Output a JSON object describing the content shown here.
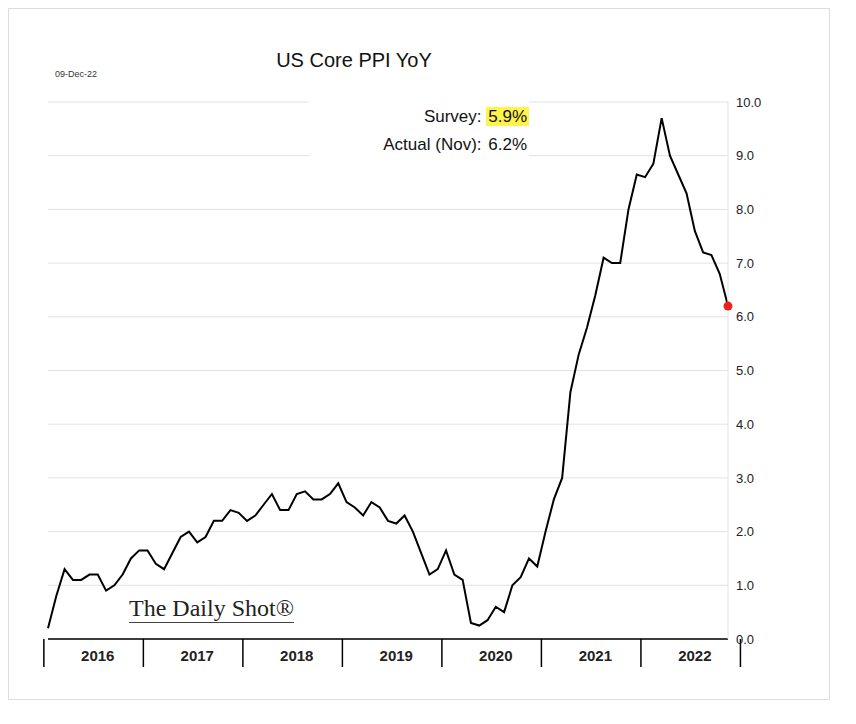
{
  "chart_data": {
    "type": "line",
    "title": "US Core PPI YoY",
    "date_label": "09-Dec-22",
    "source": "The Daily Shot®",
    "annotations": [
      {
        "text": "Survey:",
        "value": "5.9%"
      },
      {
        "text": "Actual (Nov):",
        "value": "6.2%"
      }
    ],
    "categories": [
      null,
      null,
      null,
      null,
      null,
      null,
      "2016",
      null,
      null,
      null,
      null,
      null,
      null,
      null,
      null,
      null,
      null,
      null,
      "2017",
      null,
      null,
      null,
      null,
      null,
      null,
      null,
      null,
      null,
      null,
      null,
      "2018",
      null,
      null,
      null,
      null,
      null,
      null,
      null,
      null,
      null,
      null,
      null,
      "2019",
      null,
      null,
      null,
      null,
      null,
      null,
      null,
      null,
      null,
      null,
      null,
      "2020",
      null,
      null,
      null,
      null,
      null,
      null,
      null,
      null,
      null,
      null,
      null,
      "2021",
      null,
      null,
      null,
      null,
      null,
      null,
      null,
      null,
      null,
      null,
      null,
      "2022",
      null,
      null,
      null,
      null
    ],
    "series": [
      {
        "name": "US Core PPI YoY",
        "color": "#000000",
        "marker": "last",
        "values": [
          0.2,
          0.8,
          1.3,
          1.1,
          1.1,
          1.2,
          1.2,
          0.9,
          1.0,
          1.2,
          1.5,
          1.65,
          1.65,
          1.4,
          1.3,
          1.6,
          1.9,
          2.0,
          1.8,
          1.9,
          2.2,
          2.2,
          2.4,
          2.35,
          2.2,
          2.3,
          2.5,
          2.7,
          2.4,
          2.4,
          2.7,
          2.75,
          2.6,
          2.6,
          2.7,
          2.9,
          2.55,
          2.45,
          2.3,
          2.55,
          2.45,
          2.2,
          2.15,
          2.3,
          2.0,
          1.6,
          1.2,
          1.3,
          1.65,
          1.2,
          1.1,
          0.3,
          0.25,
          0.35,
          0.6,
          0.5,
          1.0,
          1.15,
          1.5,
          1.35,
          2.0,
          2.6,
          3.0,
          4.6,
          5.3,
          5.8,
          6.4,
          7.1,
          7.0,
          7.0,
          8.0,
          8.65,
          8.6,
          8.85,
          9.7,
          9.0,
          8.65,
          8.3,
          7.6,
          7.2,
          7.15,
          6.8,
          6.2
        ]
      }
    ],
    "ylim": [
      0,
      10
    ],
    "yticks": [
      {
        "value": 0,
        "label": "0.0"
      },
      {
        "value": 1,
        "label": "1.0"
      },
      {
        "value": 2,
        "label": "2.0"
      },
      {
        "value": 3,
        "label": "3.0"
      },
      {
        "value": 4,
        "label": "4.0"
      },
      {
        "value": 5,
        "label": "5.0"
      },
      {
        "value": 6,
        "label": "6.0"
      },
      {
        "value": 7,
        "label": "7.0"
      },
      {
        "value": 8,
        "label": "8.0"
      },
      {
        "value": 9,
        "label": "9.0"
      },
      {
        "value": 10,
        "label": "10.0"
      }
    ],
    "grid": true
  }
}
